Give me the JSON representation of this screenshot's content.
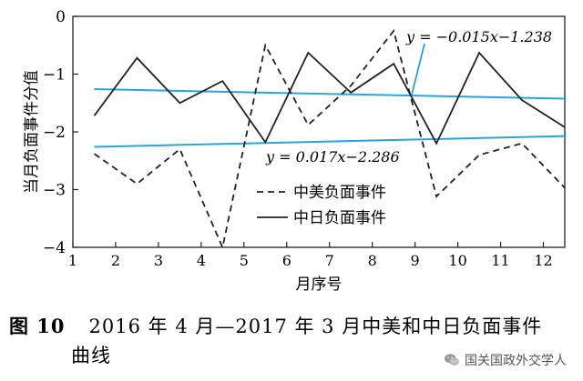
{
  "chart_data": {
    "type": "line",
    "title": "",
    "xlabel": "月序号",
    "ylabel": "当月负面事件分值",
    "xlim": [
      1,
      12.5
    ],
    "ylim": [
      -4,
      0
    ],
    "x_ticks": [
      "1",
      "2",
      "3",
      "4",
      "5",
      "6",
      "7",
      "8",
      "9",
      "10",
      "11",
      "12"
    ],
    "y_ticks": [
      "0",
      "-1",
      "-2",
      "-3",
      "-4"
    ],
    "grid": false,
    "legend": "lower-left",
    "series": [
      {
        "name": "中美负面事件",
        "style": "dashed",
        "color": "#222222",
        "x": [
          1.5,
          2.5,
          3.5,
          4.5,
          5.5,
          6.5,
          7.5,
          8.5,
          9.5,
          10.5,
          11.5,
          12.5
        ],
        "values": [
          -2.38,
          -2.9,
          -2.3,
          -4.0,
          -0.5,
          -1.88,
          -1.2,
          -0.25,
          -3.12,
          -2.4,
          -2.2,
          -2.97
        ]
      },
      {
        "name": "中日负面事件",
        "style": "solid",
        "color": "#222222",
        "x": [
          1.5,
          2.5,
          3.5,
          4.5,
          5.5,
          6.5,
          7.5,
          8.5,
          9.5,
          10.5,
          11.5,
          12.5
        ],
        "values": [
          -1.72,
          -0.72,
          -1.5,
          -1.12,
          -2.18,
          -0.63,
          -1.32,
          -0.82,
          -2.2,
          -0.63,
          -1.45,
          -1.92
        ]
      }
    ],
    "trendlines": [
      {
        "label": "y = −0.015x−1.238",
        "color": "#29a6d6",
        "slope": -0.015,
        "intercept": -1.238,
        "x_range": [
          1.5,
          12.5
        ]
      },
      {
        "label": "y = 0.017x−2.286",
        "color": "#29a6d6",
        "slope": 0.017,
        "intercept": -2.286,
        "x_range": [
          1.5,
          12.5
        ]
      }
    ]
  },
  "caption": {
    "label": "图 10",
    "title_line1": "2016 年 4 月—2017 年 3 月中美和中日负面事件",
    "title_line2": "曲线"
  },
  "watermark": {
    "text": "国关国政外交学人"
  }
}
